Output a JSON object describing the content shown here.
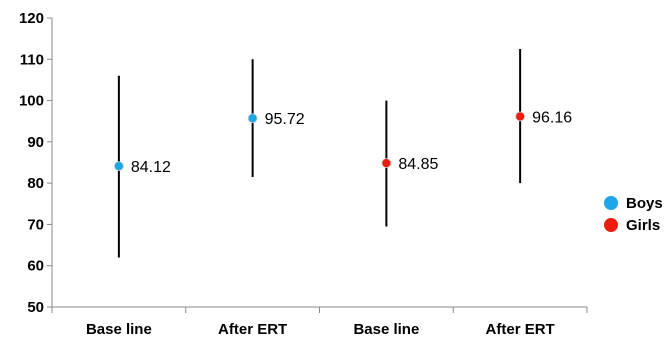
{
  "chart_data": {
    "type": "scatter",
    "categories": [
      "Base line",
      "After ERT",
      "Base line",
      "After ERT"
    ],
    "ylim": [
      50,
      120
    ],
    "yticks": [
      50,
      60,
      70,
      80,
      90,
      100,
      110,
      120
    ],
    "grid": false,
    "legend_position": "right",
    "series": [
      {
        "name": "Boys",
        "color": "#1ea7e8",
        "points": [
          {
            "category_index": 0,
            "value": 84.12,
            "low": 62,
            "high": 106,
            "label": "84.12"
          },
          {
            "category_index": 1,
            "value": 95.72,
            "low": 81.5,
            "high": 110,
            "label": "95.72"
          }
        ]
      },
      {
        "name": "Girls",
        "color": "#ee1c0f",
        "points": [
          {
            "category_index": 2,
            "value": 84.85,
            "low": 69.5,
            "high": 100,
            "label": "84.85"
          },
          {
            "category_index": 3,
            "value": 96.16,
            "low": 80,
            "high": 112.5,
            "label": "96.16"
          }
        ]
      }
    ]
  }
}
